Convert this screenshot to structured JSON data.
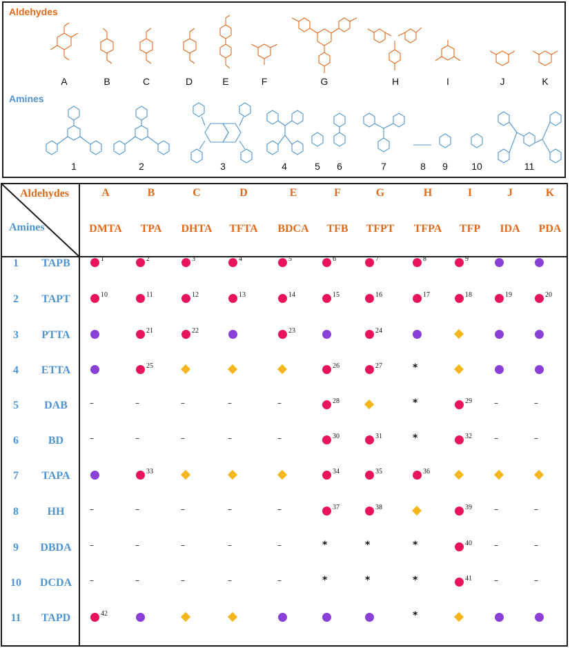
{
  "structures": {
    "aldehydes_title": "Aldehydes",
    "amines_title": "Amines",
    "aldehyde_labels": [
      "A",
      "B",
      "C",
      "D",
      "E",
      "F",
      "G",
      "H",
      "I",
      "J",
      "K"
    ],
    "amine_labels": [
      "1",
      "2",
      "3",
      "4",
      "5",
      "6",
      "7",
      "8",
      "9",
      "10",
      "11"
    ]
  },
  "table": {
    "corner_aldehydes": "Aldehydes",
    "corner_amines": "Amines",
    "columns": [
      {
        "letter": "A",
        "abbr": "DMTA"
      },
      {
        "letter": "B",
        "abbr": "TPA"
      },
      {
        "letter": "C",
        "abbr": "DHTA"
      },
      {
        "letter": "D",
        "abbr": "TFTA"
      },
      {
        "letter": "E",
        "abbr": "BDCA"
      },
      {
        "letter": "F",
        "abbr": "TFB"
      },
      {
        "letter": "G",
        "abbr": "TFPT"
      },
      {
        "letter": "H",
        "abbr": "TFPA"
      },
      {
        "letter": "I",
        "abbr": "TFP"
      },
      {
        "letter": "J",
        "abbr": "IDA"
      },
      {
        "letter": "K",
        "abbr": "PDA"
      }
    ],
    "rows": [
      {
        "num": "1",
        "abbr": "TAPB",
        "cells": [
          "pink:1",
          "pink:2",
          "pink:3",
          "pink:4",
          "pink:5",
          "pink:6",
          "pink:7",
          "pink:8",
          "pink:9",
          "purple",
          "purple"
        ]
      },
      {
        "num": "2",
        "abbr": "TAPT",
        "cells": [
          "pink:10",
          "pink:11",
          "pink:12",
          "pink:13",
          "pink:14",
          "pink:15",
          "pink:16",
          "pink:17",
          "pink:18",
          "pink:19",
          "pink:20"
        ]
      },
      {
        "num": "3",
        "abbr": "PTTA",
        "cells": [
          "purple",
          "pink:21",
          "pink:22",
          "purple",
          "pink:23",
          "purple",
          "pink:24",
          "purple",
          "diamond",
          "purple",
          "purple"
        ]
      },
      {
        "num": "4",
        "abbr": "ETTA",
        "cells": [
          "purple",
          "pink:25",
          "diamond",
          "diamond",
          "diamond",
          "pink:26",
          "pink:27",
          "star",
          "diamond",
          "purple",
          "purple"
        ]
      },
      {
        "num": "5",
        "abbr": "DAB",
        "cells": [
          "dash",
          "dash",
          "dash",
          "dash",
          "dash",
          "pink:28",
          "diamond",
          "star",
          "pink:29",
          "dash",
          "dash"
        ]
      },
      {
        "num": "6",
        "abbr": "BD",
        "cells": [
          "dash",
          "dash",
          "dash",
          "dash",
          "dash",
          "pink:30",
          "pink:31",
          "star",
          "pink:32",
          "dash",
          "dash"
        ]
      },
      {
        "num": "7",
        "abbr": "TAPA",
        "cells": [
          "purple",
          "pink:33",
          "diamond",
          "diamond",
          "diamond",
          "pink:34",
          "pink:35",
          "pink:36",
          "diamond",
          "diamond",
          "diamond"
        ]
      },
      {
        "num": "8",
        "abbr": "HH",
        "cells": [
          "dash",
          "dash",
          "dash",
          "dash",
          "dash",
          "pink:37",
          "pink:38",
          "diamond",
          "pink:39",
          "dash",
          "dash"
        ]
      },
      {
        "num": "9",
        "abbr": "DBDA",
        "cells": [
          "dash",
          "dash",
          "dash",
          "dash",
          "dash",
          "star",
          "star",
          "star",
          "pink:40",
          "dash",
          "dash"
        ]
      },
      {
        "num": "10",
        "abbr": "DCDA",
        "cells": [
          "dash",
          "dash",
          "dash",
          "dash",
          "dash",
          "star",
          "star",
          "star",
          "pink:41",
          "dash",
          "dash"
        ]
      },
      {
        "num": "11",
        "abbr": "TAPD",
        "cells": [
          "pink:42",
          "purple",
          "diamond",
          "diamond",
          "purple",
          "purple",
          "purple",
          "star",
          "diamond",
          "purple",
          "purple"
        ]
      }
    ],
    "dash_glyph": "–",
    "star_glyph": "*"
  },
  "colors": {
    "aldehyde_orange": "#e06a1b",
    "amine_blue": "#4f94cf",
    "pink": "#e8135d",
    "purple": "#8a3fd6",
    "diamond": "#f5b51c"
  }
}
